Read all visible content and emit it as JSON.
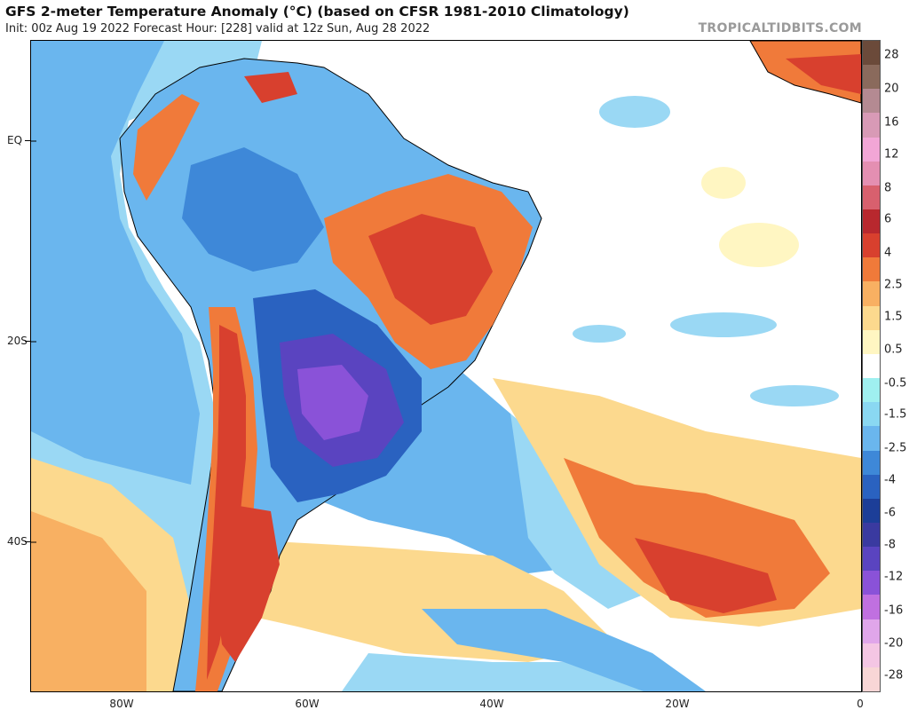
{
  "header": {
    "title": "GFS 2-meter Temperature Anomaly (°C) (based on CFSR 1981-2010 Climatology)",
    "subtitle": "Init: 00z Aug 19 2022   Forecast Hour: [228]   valid at 12z Sun, Aug 28 2022",
    "brand": "TROPICALTIDBITS.COM"
  },
  "map": {
    "lat_labels": [
      "EQ",
      "20S",
      "40S"
    ],
    "lon_labels": [
      "80W",
      "60W",
      "40W",
      "20W",
      "0"
    ]
  },
  "colorbar": {
    "labels": [
      "28",
      "20",
      "16",
      "12",
      "8",
      "6",
      "4",
      "2.5",
      "1.5",
      "0.5",
      "-0.5",
      "-1.5",
      "-2.5",
      "-4",
      "-6",
      "-8",
      "-12",
      "-16",
      "-20",
      "-28"
    ],
    "colors": [
      "#6b4a3a",
      "#8a6a5c",
      "#b48a92",
      "#d89ab6",
      "#f2a6d6",
      "#e48fb2",
      "#d8606e",
      "#b8282e",
      "#d8402e",
      "#f07a3a",
      "#f8b062",
      "#fcd98e",
      "#fff6c2",
      "#ffffff",
      "#9ff0f0",
      "#8ad8f2",
      "#6ab6ee",
      "#3e88d8",
      "#2a62c0",
      "#1c3e98",
      "#3a3aa0",
      "#5a44c0",
      "#8a52d8",
      "#c070e0",
      "#e0a6ea",
      "#f4c6e4",
      "#f8d6d6"
    ]
  }
}
